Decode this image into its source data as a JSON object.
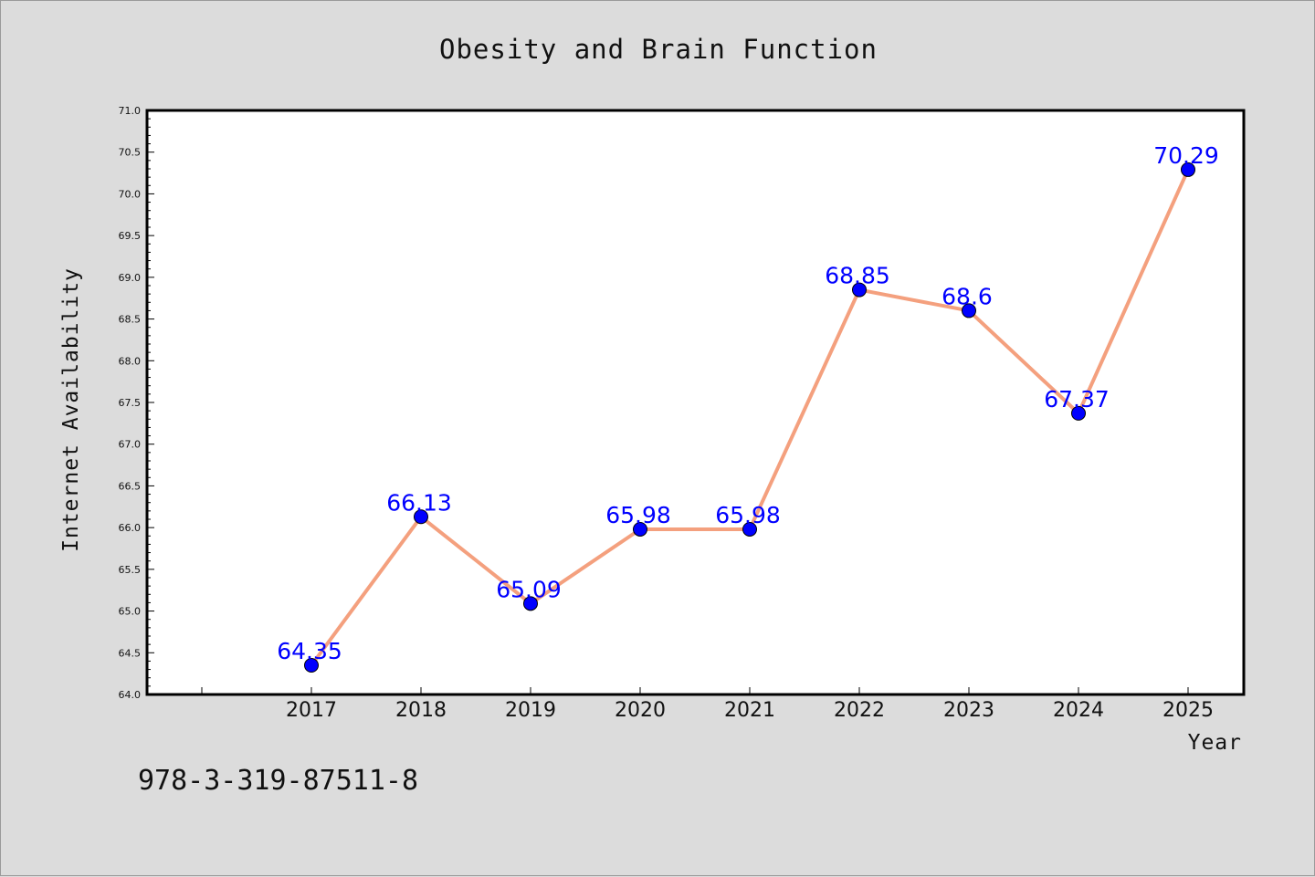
{
  "chart_data": {
    "type": "line",
    "title": "Obesity and Brain Function",
    "xlabel": "Year",
    "ylabel": "Internet Availability",
    "x": [
      "2017",
      "2018",
      "2019",
      "2020",
      "2021",
      "2022",
      "2023",
      "2024",
      "2025"
    ],
    "series": [
      {
        "values": [
          64.35,
          66.13,
          65.09,
          65.98,
          65.98,
          68.85,
          68.6,
          67.37,
          70.29
        ],
        "data_labels": [
          "64.35",
          "66.13",
          "65.09",
          "65.98",
          "65.98",
          "68.85",
          "68.6",
          "67.37",
          "70.29"
        ],
        "line_color": "#f4a07e",
        "marker_color": "#0000ff"
      }
    ],
    "ylim": [
      64.0,
      71.0
    ],
    "yticks": [
      "64.0",
      "64.5",
      "65.0",
      "65.5",
      "66.0",
      "66.5",
      "67.0",
      "67.5",
      "68.0",
      "68.5",
      "69.0",
      "69.5",
      "70.0",
      "70.5",
      "71.0"
    ],
    "grid": false,
    "legend": "none"
  },
  "footer": {
    "isbn": "978-3-319-87511-8"
  }
}
